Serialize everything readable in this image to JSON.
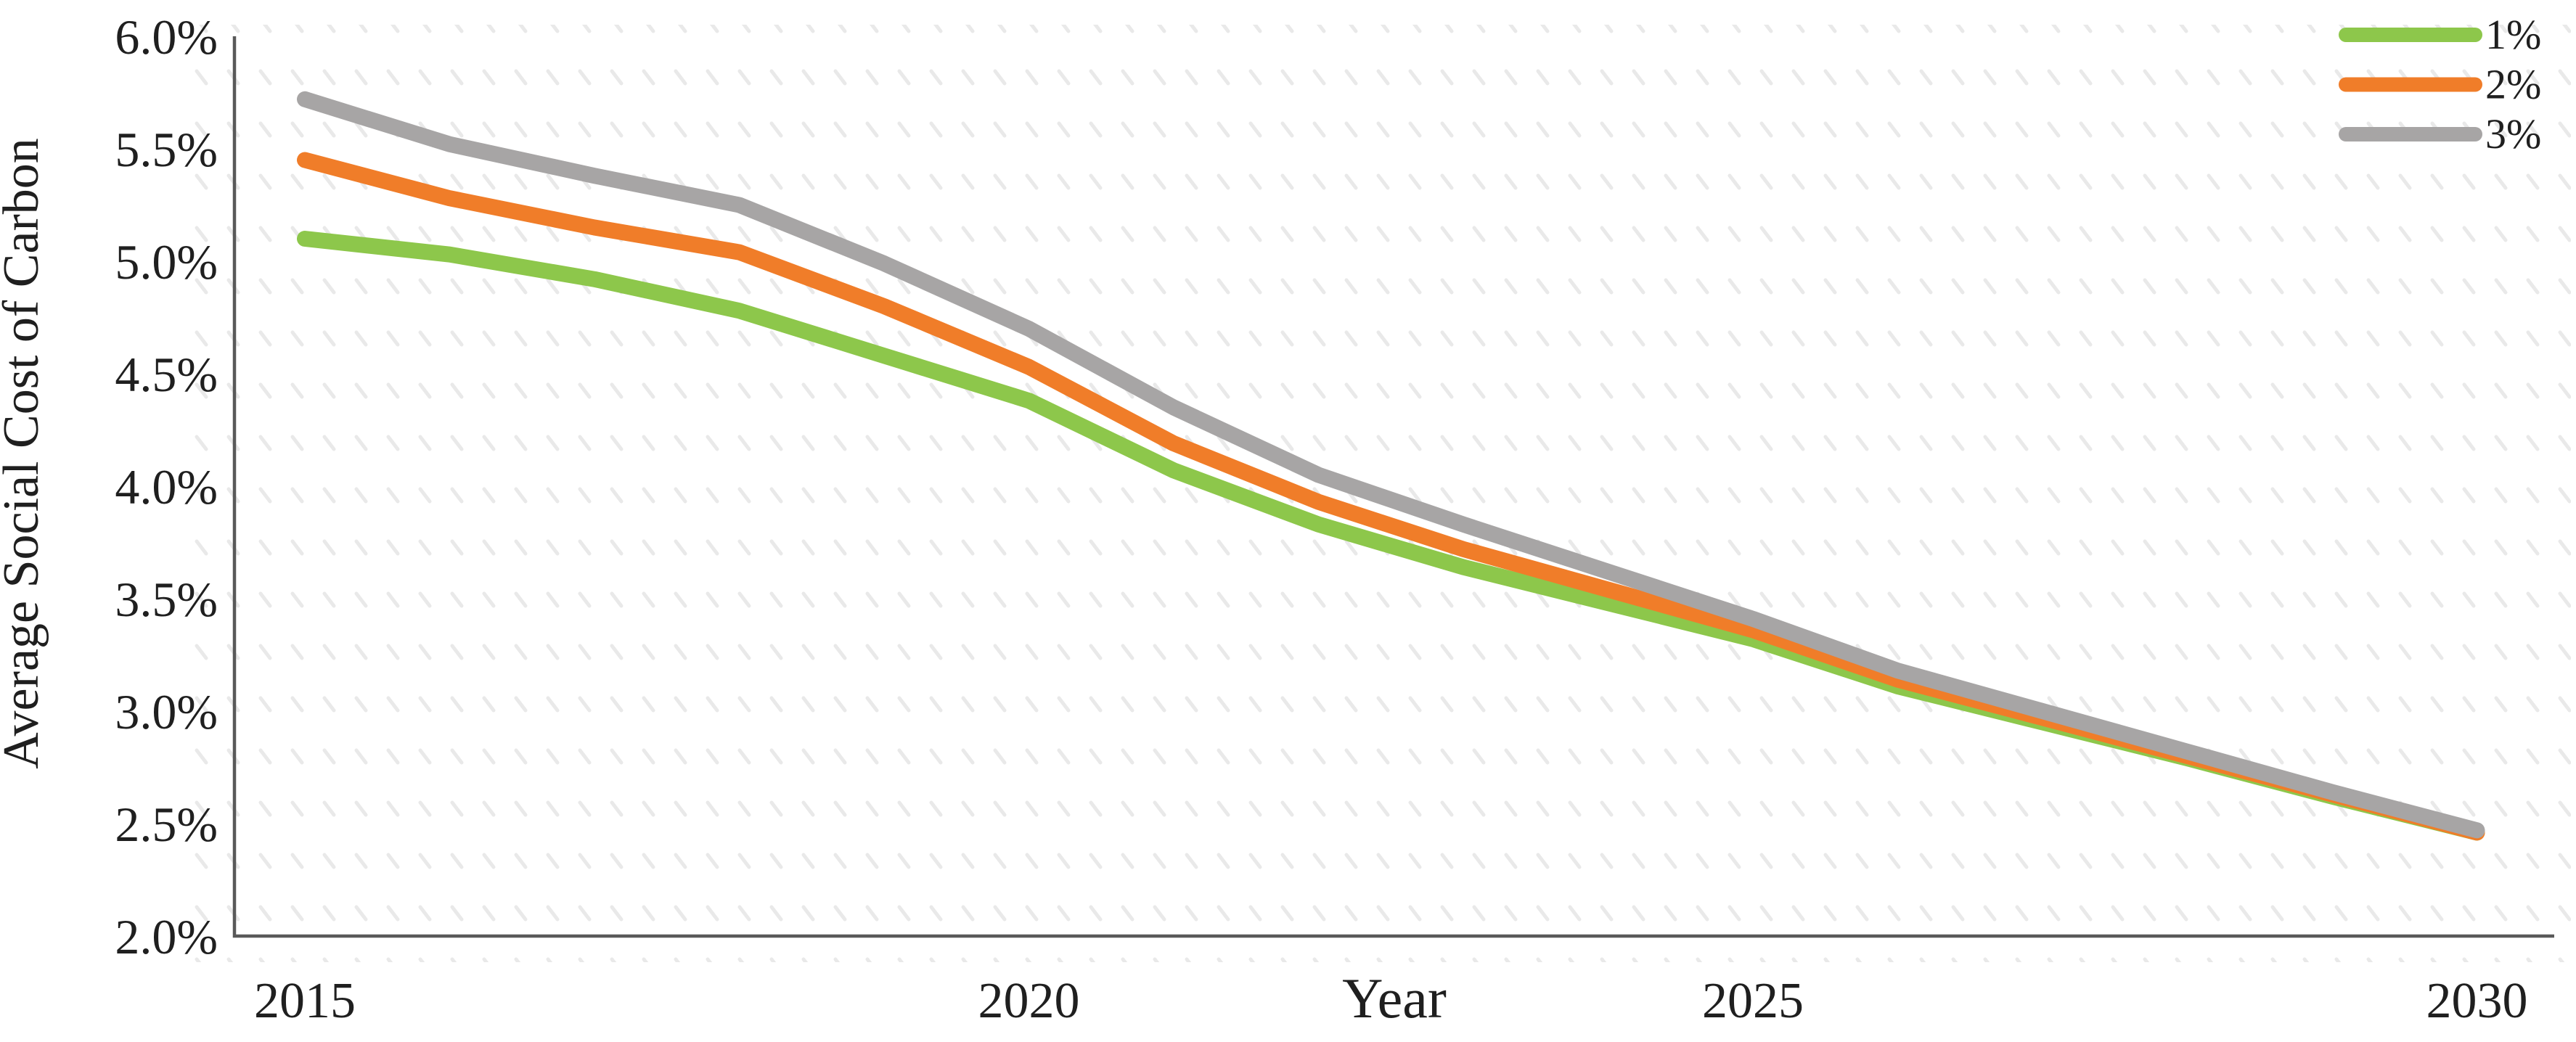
{
  "chart_data": {
    "type": "line",
    "title": "",
    "xlabel": "Year",
    "ylabel": "Average Social Cost of Carbon",
    "xlim": [
      2015,
      2030
    ],
    "ylim": [
      2.0,
      6.0
    ],
    "grid": false,
    "legend_position": "top-right",
    "background_texture": "faint diagonal hatch rows",
    "x": [
      2015,
      2016,
      2017,
      2018,
      2019,
      2020,
      2021,
      2022,
      2023,
      2024,
      2025,
      2026,
      2027,
      2028,
      2029,
      2030
    ],
    "x_ticks": [
      {
        "year": 2015,
        "label": "2015"
      },
      {
        "year": 2020,
        "label": "2020"
      },
      {
        "year": 2025,
        "label": "2025"
      },
      {
        "year": 2030,
        "label": "2030"
      }
    ],
    "y_ticks": [
      {
        "value": 6.0,
        "label": "6.0%"
      },
      {
        "value": 5.5,
        "label": "5.5%"
      },
      {
        "value": 5.0,
        "label": "5.0%"
      },
      {
        "value": 4.5,
        "label": "4.5%"
      },
      {
        "value": 4.0,
        "label": "4.0%"
      },
      {
        "value": 3.5,
        "label": "3.5%"
      },
      {
        "value": 3.0,
        "label": "3.0%"
      },
      {
        "value": 2.5,
        "label": "2.5%"
      },
      {
        "value": 2.0,
        "label": "2.0%"
      }
    ],
    "series": [
      {
        "name": "1%",
        "color": "#8DC74B",
        "values": [
          5.1,
          5.03,
          4.92,
          4.78,
          4.58,
          4.38,
          4.07,
          3.83,
          3.64,
          3.48,
          3.32,
          3.11,
          2.95,
          2.79,
          2.62,
          2.46
        ]
      },
      {
        "name": "2%",
        "color": "#F07D29",
        "values": [
          5.45,
          5.28,
          5.15,
          5.04,
          4.8,
          4.53,
          4.19,
          3.93,
          3.72,
          3.54,
          3.36,
          3.14,
          2.97,
          2.8,
          2.63,
          2.46
        ]
      },
      {
        "name": "3%",
        "color": "#A7A5A5",
        "values": [
          5.72,
          5.52,
          5.38,
          5.25,
          4.99,
          4.7,
          4.35,
          4.05,
          3.83,
          3.62,
          3.41,
          3.18,
          3.0,
          2.82,
          2.64,
          2.47
        ]
      }
    ]
  },
  "styles": {
    "axis_color": "#595959",
    "text_color": "#1f1f1f",
    "hatch_color": "#e6e6e6",
    "background": "#ffffff"
  }
}
